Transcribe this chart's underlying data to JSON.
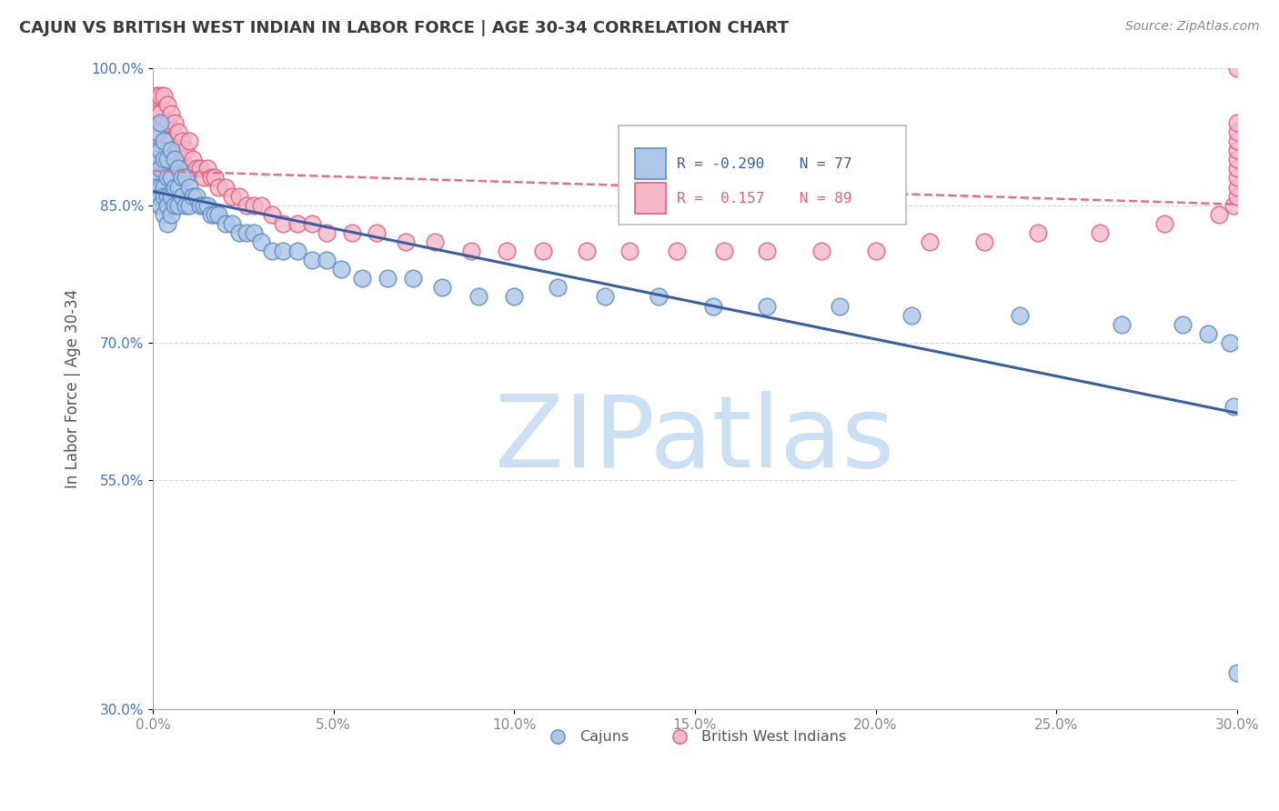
{
  "title": "CAJUN VS BRITISH WEST INDIAN IN LABOR FORCE | AGE 30-34 CORRELATION CHART",
  "source": "Source: ZipAtlas.com",
  "xlabel": "",
  "ylabel": "In Labor Force | Age 30-34",
  "xlim": [
    0.0,
    0.3
  ],
  "ylim": [
    0.3,
    1.0
  ],
  "xticks": [
    0.0,
    0.05,
    0.1,
    0.15,
    0.2,
    0.25,
    0.3
  ],
  "xtick_labels": [
    "0.0%",
    "5.0%",
    "10.0%",
    "15.0%",
    "20.0%",
    "25.0%",
    "30.0%"
  ],
  "yticks": [
    0.3,
    0.55,
    0.7,
    0.85,
    1.0
  ],
  "ytick_labels": [
    "30.0%",
    "55.0%",
    "70.0%",
    "85.0%",
    "100.0%"
  ],
  "cajun_color": "#aec6e8",
  "cajun_edge_color": "#5b8ec4",
  "bwi_color": "#f4b8c8",
  "bwi_edge_color": "#e06080",
  "cajun_r": -0.29,
  "cajun_n": 77,
  "bwi_r": 0.157,
  "bwi_n": 89,
  "watermark": "ZIPatlas",
  "watermark_color": "#cce0f5",
  "grid_color": "#cccccc",
  "cajun_line_color": "#3a5fa0",
  "bwi_line_color": "#e07090",
  "cajun_x": [
    0.001,
    0.001,
    0.001,
    0.001,
    0.001,
    0.002,
    0.002,
    0.002,
    0.002,
    0.002,
    0.002,
    0.003,
    0.003,
    0.003,
    0.003,
    0.003,
    0.004,
    0.004,
    0.004,
    0.004,
    0.004,
    0.005,
    0.005,
    0.005,
    0.005,
    0.006,
    0.006,
    0.006,
    0.007,
    0.007,
    0.007,
    0.008,
    0.008,
    0.009,
    0.009,
    0.01,
    0.01,
    0.011,
    0.012,
    0.013,
    0.014,
    0.015,
    0.016,
    0.017,
    0.018,
    0.02,
    0.022,
    0.024,
    0.026,
    0.028,
    0.03,
    0.033,
    0.036,
    0.04,
    0.044,
    0.048,
    0.052,
    0.058,
    0.065,
    0.072,
    0.08,
    0.09,
    0.1,
    0.112,
    0.125,
    0.14,
    0.155,
    0.17,
    0.19,
    0.21,
    0.24,
    0.268,
    0.285,
    0.292,
    0.298,
    0.299,
    0.3
  ],
  "cajun_y": [
    0.93,
    0.9,
    0.88,
    0.87,
    0.86,
    0.94,
    0.91,
    0.89,
    0.87,
    0.86,
    0.85,
    0.92,
    0.9,
    0.87,
    0.86,
    0.84,
    0.9,
    0.88,
    0.86,
    0.85,
    0.83,
    0.91,
    0.88,
    0.86,
    0.84,
    0.9,
    0.87,
    0.85,
    0.89,
    0.87,
    0.85,
    0.88,
    0.86,
    0.88,
    0.85,
    0.87,
    0.85,
    0.86,
    0.86,
    0.85,
    0.85,
    0.85,
    0.84,
    0.84,
    0.84,
    0.83,
    0.83,
    0.82,
    0.82,
    0.82,
    0.81,
    0.8,
    0.8,
    0.8,
    0.79,
    0.79,
    0.78,
    0.77,
    0.77,
    0.77,
    0.76,
    0.75,
    0.75,
    0.76,
    0.75,
    0.75,
    0.74,
    0.74,
    0.74,
    0.73,
    0.73,
    0.72,
    0.72,
    0.71,
    0.7,
    0.63,
    0.34
  ],
  "bwi_x": [
    0.001,
    0.001,
    0.001,
    0.001,
    0.001,
    0.001,
    0.001,
    0.002,
    0.002,
    0.002,
    0.002,
    0.002,
    0.002,
    0.002,
    0.003,
    0.003,
    0.003,
    0.003,
    0.003,
    0.003,
    0.004,
    0.004,
    0.004,
    0.004,
    0.005,
    0.005,
    0.005,
    0.005,
    0.006,
    0.006,
    0.007,
    0.007,
    0.007,
    0.008,
    0.008,
    0.009,
    0.009,
    0.01,
    0.01,
    0.011,
    0.012,
    0.013,
    0.014,
    0.015,
    0.016,
    0.017,
    0.018,
    0.02,
    0.022,
    0.024,
    0.026,
    0.028,
    0.03,
    0.033,
    0.036,
    0.04,
    0.044,
    0.048,
    0.055,
    0.062,
    0.07,
    0.078,
    0.088,
    0.098,
    0.108,
    0.12,
    0.132,
    0.145,
    0.158,
    0.17,
    0.185,
    0.2,
    0.215,
    0.23,
    0.245,
    0.262,
    0.28,
    0.295,
    0.299,
    0.3,
    0.3,
    0.3,
    0.3,
    0.3,
    0.3,
    0.3,
    0.3,
    0.3,
    0.3
  ],
  "bwi_y": [
    0.97,
    0.95,
    0.93,
    0.91,
    0.9,
    0.88,
    0.86,
    0.97,
    0.95,
    0.93,
    0.91,
    0.89,
    0.87,
    0.85,
    0.97,
    0.94,
    0.92,
    0.9,
    0.88,
    0.86,
    0.96,
    0.94,
    0.92,
    0.89,
    0.95,
    0.92,
    0.9,
    0.88,
    0.94,
    0.91,
    0.93,
    0.91,
    0.89,
    0.92,
    0.9,
    0.91,
    0.89,
    0.92,
    0.89,
    0.9,
    0.89,
    0.89,
    0.88,
    0.89,
    0.88,
    0.88,
    0.87,
    0.87,
    0.86,
    0.86,
    0.85,
    0.85,
    0.85,
    0.84,
    0.83,
    0.83,
    0.83,
    0.82,
    0.82,
    0.82,
    0.81,
    0.81,
    0.8,
    0.8,
    0.8,
    0.8,
    0.8,
    0.8,
    0.8,
    0.8,
    0.8,
    0.8,
    0.81,
    0.81,
    0.82,
    0.82,
    0.83,
    0.84,
    0.85,
    0.86,
    0.87,
    0.88,
    0.89,
    0.9,
    0.91,
    0.92,
    0.93,
    0.94,
    1.0
  ],
  "title_color": "#3a3a3a",
  "axis_color": "#aaaaaa",
  "tick_color": "#888888",
  "label_color": "#555555",
  "ytick_color": "#4472c4"
}
